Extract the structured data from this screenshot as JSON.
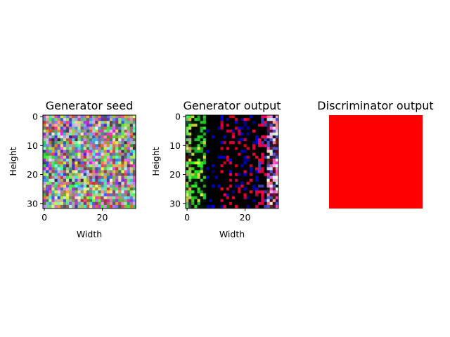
{
  "figure": {
    "background": "#ffffff"
  },
  "chart_data": [
    {
      "type": "heatmap",
      "title": "Generator seed",
      "xlabel": "Width",
      "ylabel": "Height",
      "rows": 32,
      "cols": 32,
      "xticks": [
        0,
        20
      ],
      "yticks": [
        0,
        10,
        20,
        30
      ],
      "content": "random multicolor noise (RGB pixels)",
      "axes_visible": true
    },
    {
      "type": "heatmap",
      "title": "Generator output",
      "xlabel": "Width",
      "ylabel": "Height",
      "rows": 32,
      "cols": 32,
      "xticks": [
        0,
        20
      ],
      "yticks": [
        0,
        10,
        20,
        30
      ],
      "content": "mostly black with green/yellow pixels at left, blue/red dashes in middle, red/pink/white speckles at right",
      "axes_visible": true
    },
    {
      "type": "heatmap",
      "title": "Discriminator output",
      "rows": 1,
      "cols": 1,
      "fill_color": "#ff0000",
      "axes_visible": false
    }
  ]
}
